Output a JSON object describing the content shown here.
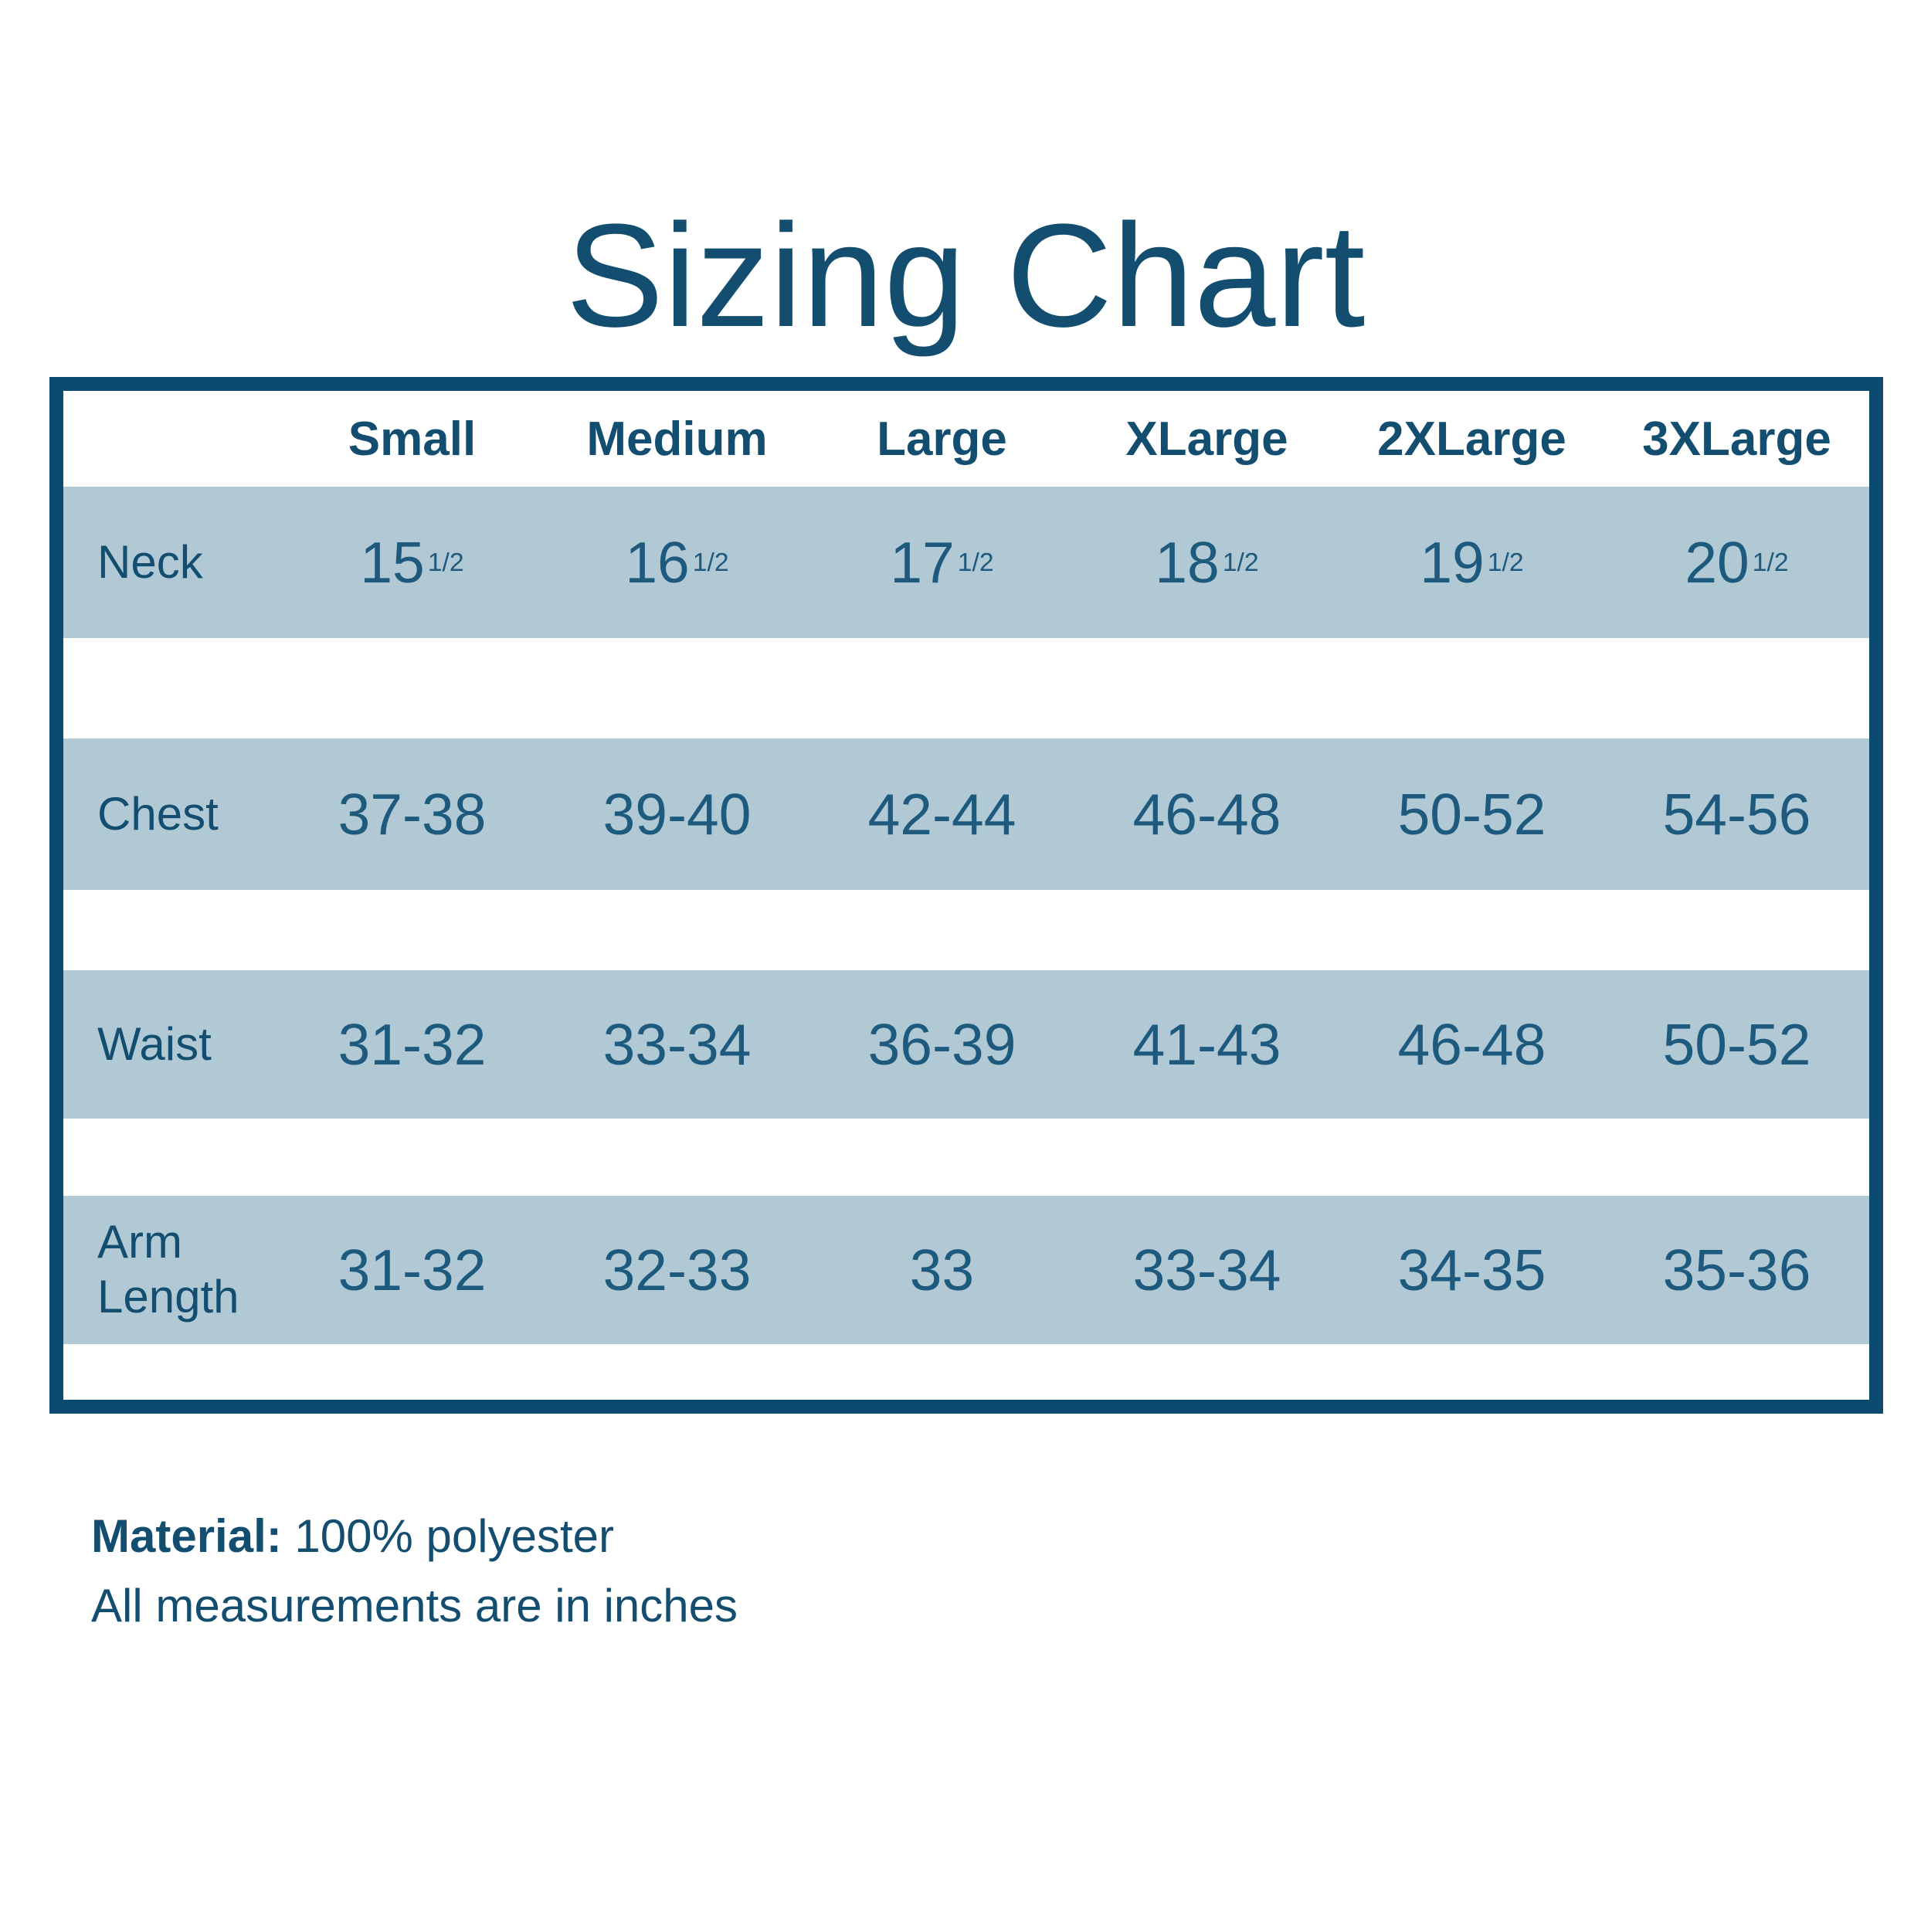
{
  "page": {
    "title": "Sizing Chart",
    "background": "#ffffff"
  },
  "colors": {
    "border": "#0d4a70",
    "heading_text": "#134e70",
    "number_text": "#1e5a7d",
    "row_stripe": "#b0c9d5"
  },
  "chart_data": {
    "type": "table",
    "title": "Sizing Chart",
    "columns": [
      "Small",
      "Medium",
      "Large",
      "XLarge",
      "2XLarge",
      "3XLarge"
    ],
    "rows": [
      {
        "label": "Neck",
        "values": [
          {
            "whole": "15",
            "frac": "1/2"
          },
          {
            "whole": "16",
            "frac": "1/2"
          },
          {
            "whole": "17",
            "frac": "1/2"
          },
          {
            "whole": "18",
            "frac": "1/2"
          },
          {
            "whole": "19",
            "frac": "1/2"
          },
          {
            "whole": "20",
            "frac": "1/2"
          }
        ]
      },
      {
        "label": "Chest",
        "values": [
          "37-38",
          "39-40",
          "42-44",
          "46-48",
          "50-52",
          "54-56"
        ]
      },
      {
        "label": "Waist",
        "values": [
          "31-32",
          "33-34",
          "36-39",
          "41-43",
          "46-48",
          "50-52"
        ]
      },
      {
        "label": "Arm Length",
        "values": [
          "31-32",
          "32-33",
          "33",
          "33-34",
          "34-35",
          "35-36"
        ]
      }
    ]
  },
  "footer": {
    "material_label": "Material:",
    "material_value": "100% polyester",
    "note": "All measurements are in inches"
  }
}
